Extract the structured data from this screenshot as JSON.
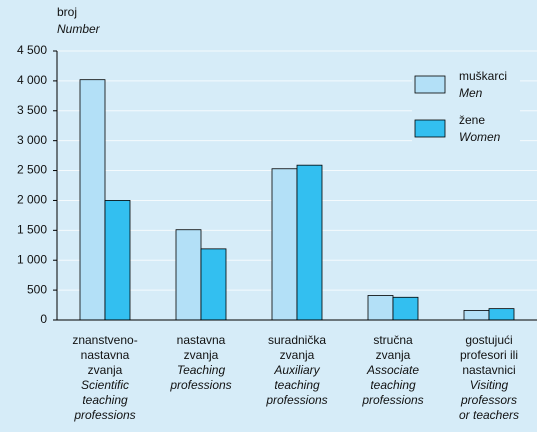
{
  "chart_data": {
    "type": "bar",
    "y_label": "broj",
    "y_label_en": "Number",
    "categories": [
      [
        "znanstveno-",
        "nastavna",
        "zvanja"
      ],
      [
        "nastavna",
        "zvanja"
      ],
      [
        "suradnička",
        "zvanja"
      ],
      [
        "stručna",
        "zvanja"
      ],
      [
        "gostujući",
        "profesori ili",
        "nastavnici"
      ]
    ],
    "categories_en": [
      [
        "Scientific",
        "teaching",
        "professions"
      ],
      [
        "Teaching",
        "professions"
      ],
      [
        "Auxiliary",
        "teaching",
        "professions"
      ],
      [
        "Associate",
        "teaching",
        "professions"
      ],
      [
        "Visiting",
        "professors",
        "or teachers"
      ]
    ],
    "series": [
      {
        "name": "muškarci",
        "name_en": "Men",
        "color": "#b3e0f7",
        "values": [
          4020,
          1510,
          2530,
          410,
          160
        ]
      },
      {
        "name": "žene",
        "name_en": "Women",
        "color": "#33bff0",
        "values": [
          2000,
          1190,
          2590,
          380,
          190
        ]
      }
    ],
    "ylim": [
      0,
      4500
    ],
    "yticks": [
      0,
      500,
      {
        "value": 1000,
        "label": "1 000"
      },
      {
        "value": 1500,
        "label": "1 500"
      },
      {
        "value": 2000,
        "label": "2 000"
      },
      {
        "value": 2500,
        "label": "2 500"
      },
      {
        "value": 3000,
        "label": "3 000"
      },
      {
        "value": 3500,
        "label": "3 500"
      },
      {
        "value": 4000,
        "label": "4 000"
      },
      {
        "value": 4500,
        "label": "4 500"
      }
    ],
    "grid": true,
    "legend": "upper right"
  }
}
